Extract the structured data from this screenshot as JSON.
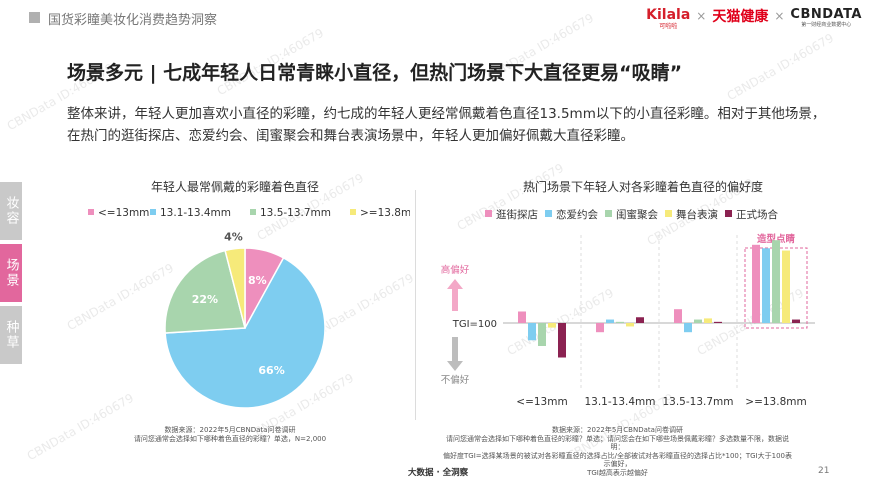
{
  "header": {
    "report_title": "国货彩瞳美妆化消费趋势洞察",
    "brands": {
      "kilala_main": "Kilala",
      "kilala_sub": "可啦啦",
      "tmall_health": "天猫健康",
      "cbndata_main": "CBNDATA",
      "cbndata_sub": "第一财经商业数据中心",
      "separator": "×"
    }
  },
  "page": {
    "headline": "场景多元 | 七成年轻人日常青睐小直径，但热门场景下大直径更易“吸睛”",
    "summary": "整体来讲，年轻人更加喜欢小直径的彩瞳，约七成的年轻人更经常佩戴着色直径13.5mm以下的小直径彩瞳。相对于其他场景，在热门的逛街探店、恋爱约会、闺蜜聚会和舞台表演场景中，年轻人更加偏好佩戴大直径彩瞳。"
  },
  "side_tabs": [
    {
      "label": "妆容",
      "active": false
    },
    {
      "label": "场景",
      "active": true
    },
    {
      "label": "种草",
      "active": false
    }
  ],
  "watermark": "CBNData ID:460679",
  "chart_data": [
    {
      "type": "pie",
      "title": "年轻人最常佩戴的彩瞳着色直径",
      "legend_position": "top",
      "slices": [
        {
          "label": "<=13mm",
          "value": 8,
          "display": "8%",
          "color": "#ee8fbd"
        },
        {
          "label": "13.1-13.4mm",
          "value": 66,
          "display": "66%",
          "color": "#7ecdf0"
        },
        {
          "label": "13.5-13.7mm",
          "value": 22,
          "display": "22%",
          "color": "#a8d5ad"
        },
        {
          "label": ">=13.8mm",
          "value": 4,
          "display": "4%",
          "color": "#f6ea7a"
        }
      ],
      "source": [
        "数据来源：2022年5月CBNData问卷调研",
        "请问您通常会选择如下哪种着色直径的彩瞳？单选，N=2,000"
      ]
    },
    {
      "type": "bar",
      "title": "热门场景下年轻人对各彩瞳着色直径的偏好度",
      "legend_position": "top",
      "categories": [
        "<=13mm",
        "13.1-13.4mm",
        "13.5-13.7mm",
        ">=13.8mm"
      ],
      "baseline": 100,
      "baseline_label": "TGI=100",
      "up_label": "高偏好",
      "down_label": "不偏好",
      "highlight_label": "造型点睛",
      "highlight_category": ">=13.8mm",
      "series": [
        {
          "name": "逛街探店",
          "color": "#ee8fbd",
          "values": [
            110,
            92,
            112,
            168
          ]
        },
        {
          "name": "恋爱约会",
          "color": "#7ecdf0",
          "values": [
            85,
            103,
            92,
            165
          ]
        },
        {
          "name": "闺蜜聚会",
          "color": "#a8d5ad",
          "values": [
            80,
            101,
            103,
            172
          ]
        },
        {
          "name": "舞台表演",
          "color": "#f6ea7a",
          "values": [
            96,
            97,
            104,
            163
          ]
        },
        {
          "name": "正式场合",
          "color": "#8b2251",
          "values": [
            70,
            105,
            101,
            103
          ]
        }
      ],
      "source": [
        "数据来源：2022年5月CBNData问卷调研",
        "请问您通常会选择如下哪种着色直径的彩瞳？单选；请问您会在如下哪些场景佩戴彩瞳？多选数量不限，数据说明：",
        "偏好度TGI=选择某场景的被试对各彩瞳直径的选择占比/全部被试对各彩瞳直径的选择占比*100；TGI大于100表示偏好，",
        "TGI越高表示越偏好"
      ]
    }
  ],
  "footer": {
    "brand": "大数据 · 全洞察",
    "page_number": "21"
  }
}
